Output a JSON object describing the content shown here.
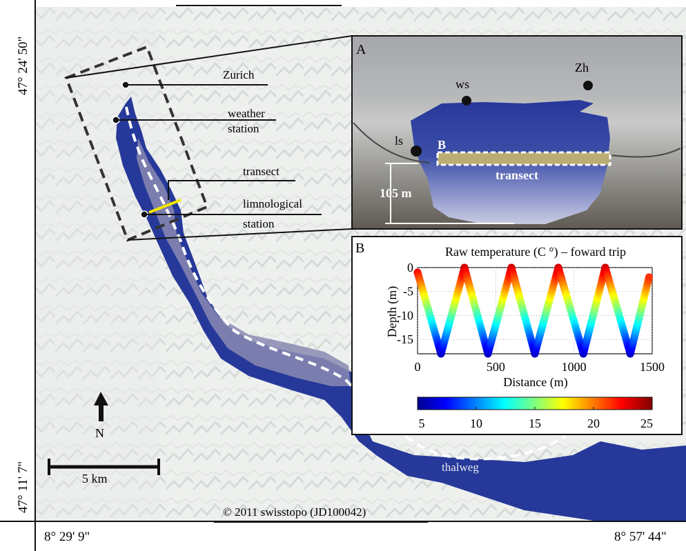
{
  "coords": {
    "lat_top": "47° 24' 50\"",
    "lat_bottom": "47° 11' 7\"",
    "lon_left": "8° 29' 9\"",
    "lon_right": "8° 57' 44\""
  },
  "map": {
    "labels": {
      "zurich": "Zurich",
      "weather_line1": "weather",
      "weather_line2": "station",
      "transect": "transect",
      "limno_line1": "limnological",
      "limno_line2": "station",
      "thalweg": "thalweg",
      "north": "N",
      "scale": "5 km",
      "copyright": "© 2011 swisstopo (JD100042)"
    },
    "colors": {
      "lake": "#1f3893",
      "terrain": "#eef0ee",
      "transect": "#f2e600"
    }
  },
  "inset_a": {
    "panel_label": "A",
    "site_zh": "Zh",
    "site_ws": "ws",
    "site_ls": "ls",
    "site_b": "B",
    "transect_label": "transect",
    "depth_label": "105 m"
  },
  "inset_b": {
    "panel_label": "B"
  },
  "chart_data": {
    "type": "scatter",
    "title": "Raw temperature (C °) – foward trip",
    "xlabel": "Distance (m)",
    "ylabel": "Depth (m)",
    "xlim": [
      0,
      1500
    ],
    "ylim": [
      -18,
      0
    ],
    "x_ticks": [
      "0",
      "500",
      "1000",
      "1500"
    ],
    "y_ticks": [
      "0",
      "-5",
      "-10",
      "-15"
    ],
    "grid": true,
    "profile_turn_points": [
      {
        "x": 0,
        "depth": -1
      },
      {
        "x": 150,
        "depth": -18
      },
      {
        "x": 300,
        "depth": 0
      },
      {
        "x": 450,
        "depth": -18
      },
      {
        "x": 600,
        "depth": 0
      },
      {
        "x": 750,
        "depth": -18
      },
      {
        "x": 900,
        "depth": 0
      },
      {
        "x": 1060,
        "depth": -18
      },
      {
        "x": 1200,
        "depth": 0
      },
      {
        "x": 1360,
        "depth": -18
      },
      {
        "x": 1480,
        "depth": -2
      }
    ],
    "colorbar": {
      "range": [
        5,
        25
      ],
      "ticks": [
        "5",
        "10",
        "15",
        "20",
        "25"
      ],
      "colormap": "jet"
    }
  }
}
